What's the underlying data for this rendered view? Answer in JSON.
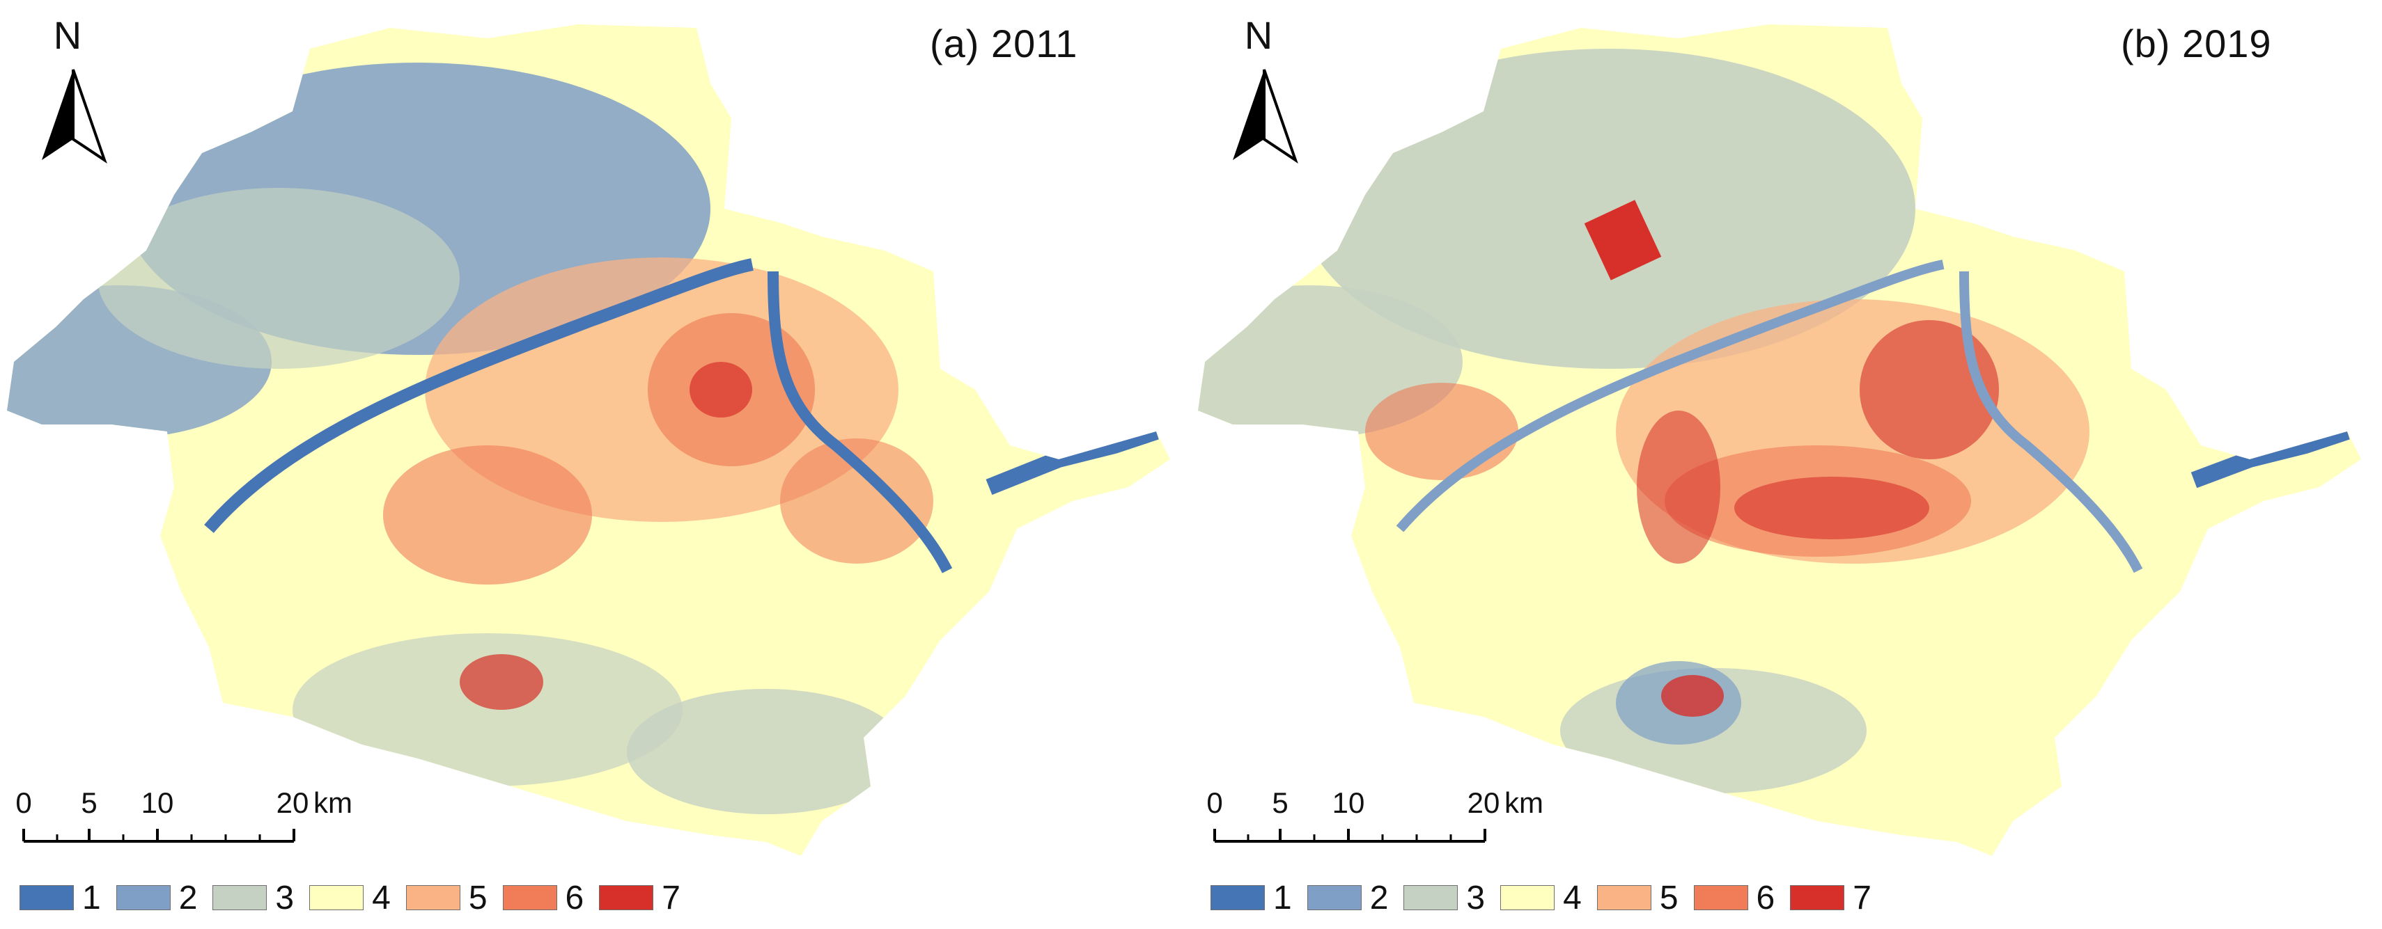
{
  "north_letter": "N",
  "scale": {
    "ticks": [
      "0",
      "5",
      "10",
      "20"
    ],
    "unit": "km"
  },
  "legend": {
    "classes": [
      {
        "label": "1",
        "color": "#4575b4"
      },
      {
        "label": "2",
        "color": "#7f9fc6"
      },
      {
        "label": "3",
        "color": "#c5d1c2"
      },
      {
        "label": "4",
        "color": "#ffffc0"
      },
      {
        "label": "5",
        "color": "#f9b384"
      },
      {
        "label": "6",
        "color": "#f07c58"
      },
      {
        "label": "7",
        "color": "#d7302a"
      }
    ]
  },
  "panels": [
    {
      "title": "(a) 2011"
    },
    {
      "title": "(b) 2019"
    }
  ]
}
